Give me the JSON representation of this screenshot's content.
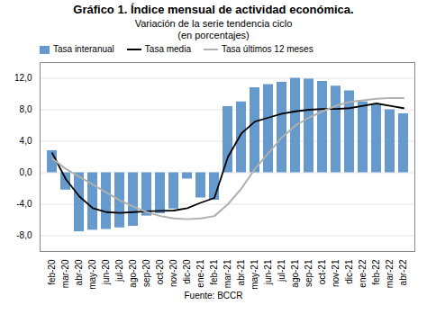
{
  "chart_data": {
    "type": "bar",
    "title": "Gráfico 1. Índice mensual de actividad económica.",
    "subtitle": "Variación de la serie tendencia ciclo\n(en porcentajes)",
    "source": "Fuente: BCCR",
    "categories": [
      "feb-20",
      "mar-20",
      "abr-20",
      "may-20",
      "jun-20",
      "jul-20",
      "ago-20",
      "sep-20",
      "oct-20",
      "nov-20",
      "dic-20",
      "ene-21",
      "feb-21",
      "mar-21",
      "abr-21",
      "may-21",
      "jun-21",
      "jul-21",
      "ago-21",
      "sep-21",
      "oct-21",
      "nov-21",
      "dic-21",
      "ene-22",
      "feb-22",
      "mar-22",
      "abr-22"
    ],
    "series": [
      {
        "name": "Tasa interanual",
        "type": "bar",
        "color": "#6699cc",
        "values": [
          2.8,
          -2.2,
          -7.5,
          -7.3,
          -7.2,
          -7.0,
          -6.8,
          -5.5,
          -5.2,
          -4.6,
          -0.8,
          -3.2,
          -3.5,
          8.4,
          9.0,
          10.8,
          11.2,
          11.5,
          12.0,
          11.9,
          11.6,
          11.0,
          10.4,
          9.0,
          8.6,
          8.0,
          7.5
        ]
      },
      {
        "name": "Tasa media",
        "type": "line",
        "color": "#000000",
        "values": [
          2.5,
          -0.8,
          -3.0,
          -4.5,
          -5.0,
          -5.1,
          -5.0,
          -4.9,
          -4.85,
          -4.8,
          -4.5,
          -3.8,
          -3.2,
          2.0,
          5.0,
          6.5,
          7.0,
          7.5,
          7.8,
          8.0,
          8.1,
          8.1,
          8.2,
          8.5,
          8.8,
          8.5,
          8.2
        ]
      },
      {
        "name": "Tasa últimos 12 meses",
        "type": "line",
        "color": "#b0b0b0",
        "values": [
          1.8,
          0.5,
          -0.5,
          -1.5,
          -2.5,
          -3.5,
          -4.3,
          -5.0,
          -5.5,
          -5.8,
          -5.9,
          -5.8,
          -5.5,
          -4.0,
          -2.0,
          0.5,
          2.5,
          4.5,
          6.0,
          7.0,
          7.8,
          8.5,
          9.0,
          9.2,
          9.4,
          9.5,
          9.5
        ]
      }
    ],
    "ylim": [
      -10,
      14
    ],
    "yticks": [
      {
        "value": -8.0,
        "label": "-8,0"
      },
      {
        "value": -4.0,
        "label": "-4,0"
      },
      {
        "value": 0.0,
        "label": "0,0"
      },
      {
        "value": 4.0,
        "label": "4,0"
      },
      {
        "value": 8.0,
        "label": "8,0"
      },
      {
        "value": 12.0,
        "label": "12,0"
      }
    ],
    "grid": true,
    "legend": "upper left"
  }
}
